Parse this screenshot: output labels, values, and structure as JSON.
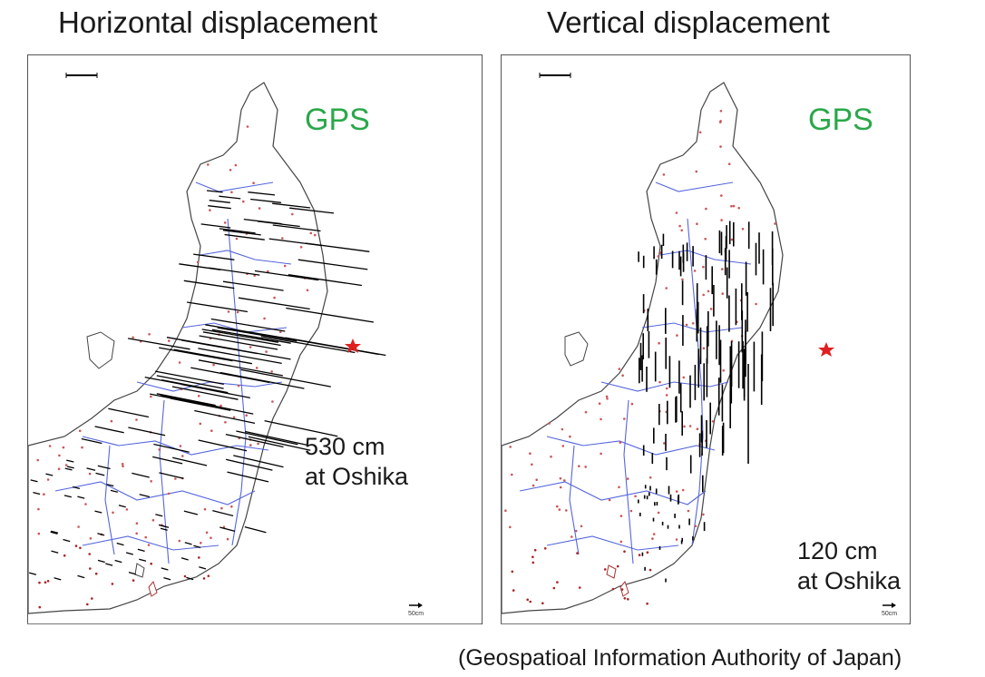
{
  "titles": {
    "left": "Horizontal displacement",
    "right": "Vertical displacement"
  },
  "left_panel": {
    "gps_label": "GPS",
    "amount": "530 cm",
    "location": "at Oshika",
    "scale_label": "50cm"
  },
  "right_panel": {
    "gps_label": "GPS",
    "amount": "120 cm",
    "location": "at Oshika",
    "scale_label": "50cm"
  },
  "credit": "(Geospatioal Information Authority of Japan)",
  "colors": {
    "gps_label": "#2aa84a",
    "prefecture_boundaries": "#5566dd",
    "station_dots": "#cc4444",
    "epicenter_star": "#e02020",
    "vectors": "#000000"
  }
}
